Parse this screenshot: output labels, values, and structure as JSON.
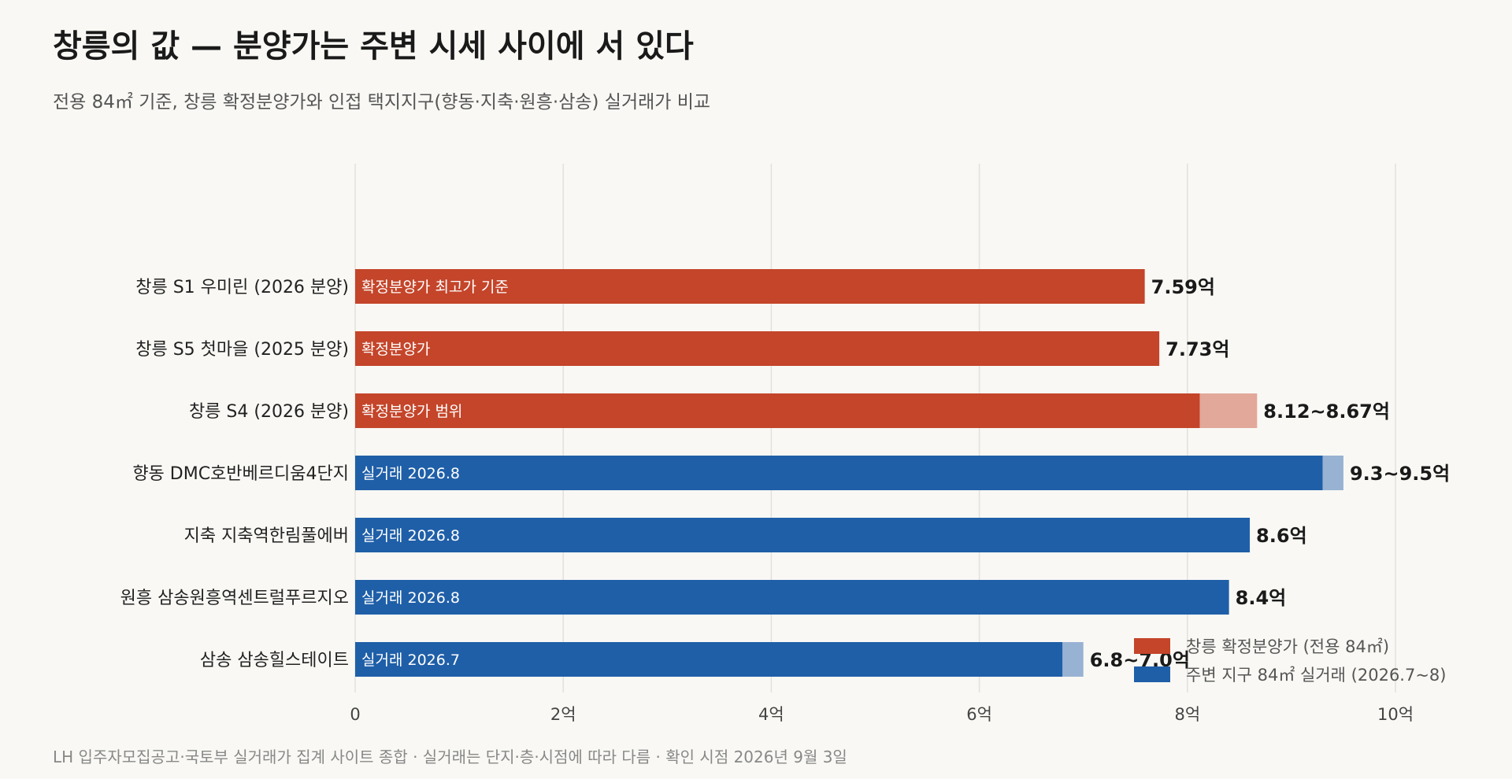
{
  "title": "창릉의 값 — 분양가는 주변 시세 사이에 서 있다",
  "subtitle": "전용 84㎡ 기준, 창릉 확정분양가와 인접 택지지구(향동·지축·원흥·삼송) 실거래가 비교",
  "footer": "LH 입주자모집공고·국토부 실거래가 집계 사이트 종합 · 실거래는 단지·층·시점에 따라 다름 · 확인 시점 2026년 9월 3일",
  "colors": {
    "changreung": "#c4452a",
    "changreung_range": "#e2a89a",
    "nearby": "#1f5fa8",
    "nearby_range": "#97b2d3",
    "grid": "#e3e1dc",
    "background": "#f9f8f4"
  },
  "chart_data": {
    "type": "bar",
    "orientation": "horizontal",
    "xlim": [
      0,
      10
    ],
    "xticks": [
      0,
      2,
      4,
      6,
      8,
      10
    ],
    "xtick_labels": [
      "0",
      "2억",
      "4억",
      "6억",
      "8억",
      "10억"
    ],
    "grid": true,
    "legend_position": "bottom-right",
    "legend": [
      {
        "label": "창릉 확정분양가 (전용 84㎡)",
        "group": "changreung"
      },
      {
        "label": "주변 지구 84㎡ 실거래 (2026.7~8)",
        "group": "nearby"
      }
    ],
    "bars": [
      {
        "category": "창릉 S1 우미린 (2026 분양)",
        "group": "changreung",
        "low": 7.59,
        "high": 7.59,
        "inner_label": "확정분양가 최고가 기준",
        "value_label": "7.59억"
      },
      {
        "category": "창릉 S5 첫마을 (2025 분양)",
        "group": "changreung",
        "low": 7.73,
        "high": 7.73,
        "inner_label": "확정분양가",
        "value_label": "7.73억"
      },
      {
        "category": "창릉 S4 (2026 분양)",
        "group": "changreung",
        "low": 8.12,
        "high": 8.67,
        "inner_label": "확정분양가 범위",
        "value_label": "8.12~8.67억"
      },
      {
        "category": "향동 DMC호반베르디움4단지",
        "group": "nearby",
        "low": 9.3,
        "high": 9.5,
        "inner_label": "실거래 2026.8",
        "value_label": "9.3~9.5억"
      },
      {
        "category": "지축 지축역한림풀에버",
        "group": "nearby",
        "low": 8.6,
        "high": 8.6,
        "inner_label": "실거래 2026.8",
        "value_label": "8.6억"
      },
      {
        "category": "원흥 삼송원흥역센트럴푸르지오",
        "group": "nearby",
        "low": 8.4,
        "high": 8.4,
        "inner_label": "실거래 2026.8",
        "value_label": "8.4억"
      },
      {
        "category": "삼송 삼송힐스테이트",
        "group": "nearby",
        "low": 6.8,
        "high": 7.0,
        "inner_label": "실거래 2026.7",
        "value_label": "6.8~7.0억"
      }
    ]
  }
}
